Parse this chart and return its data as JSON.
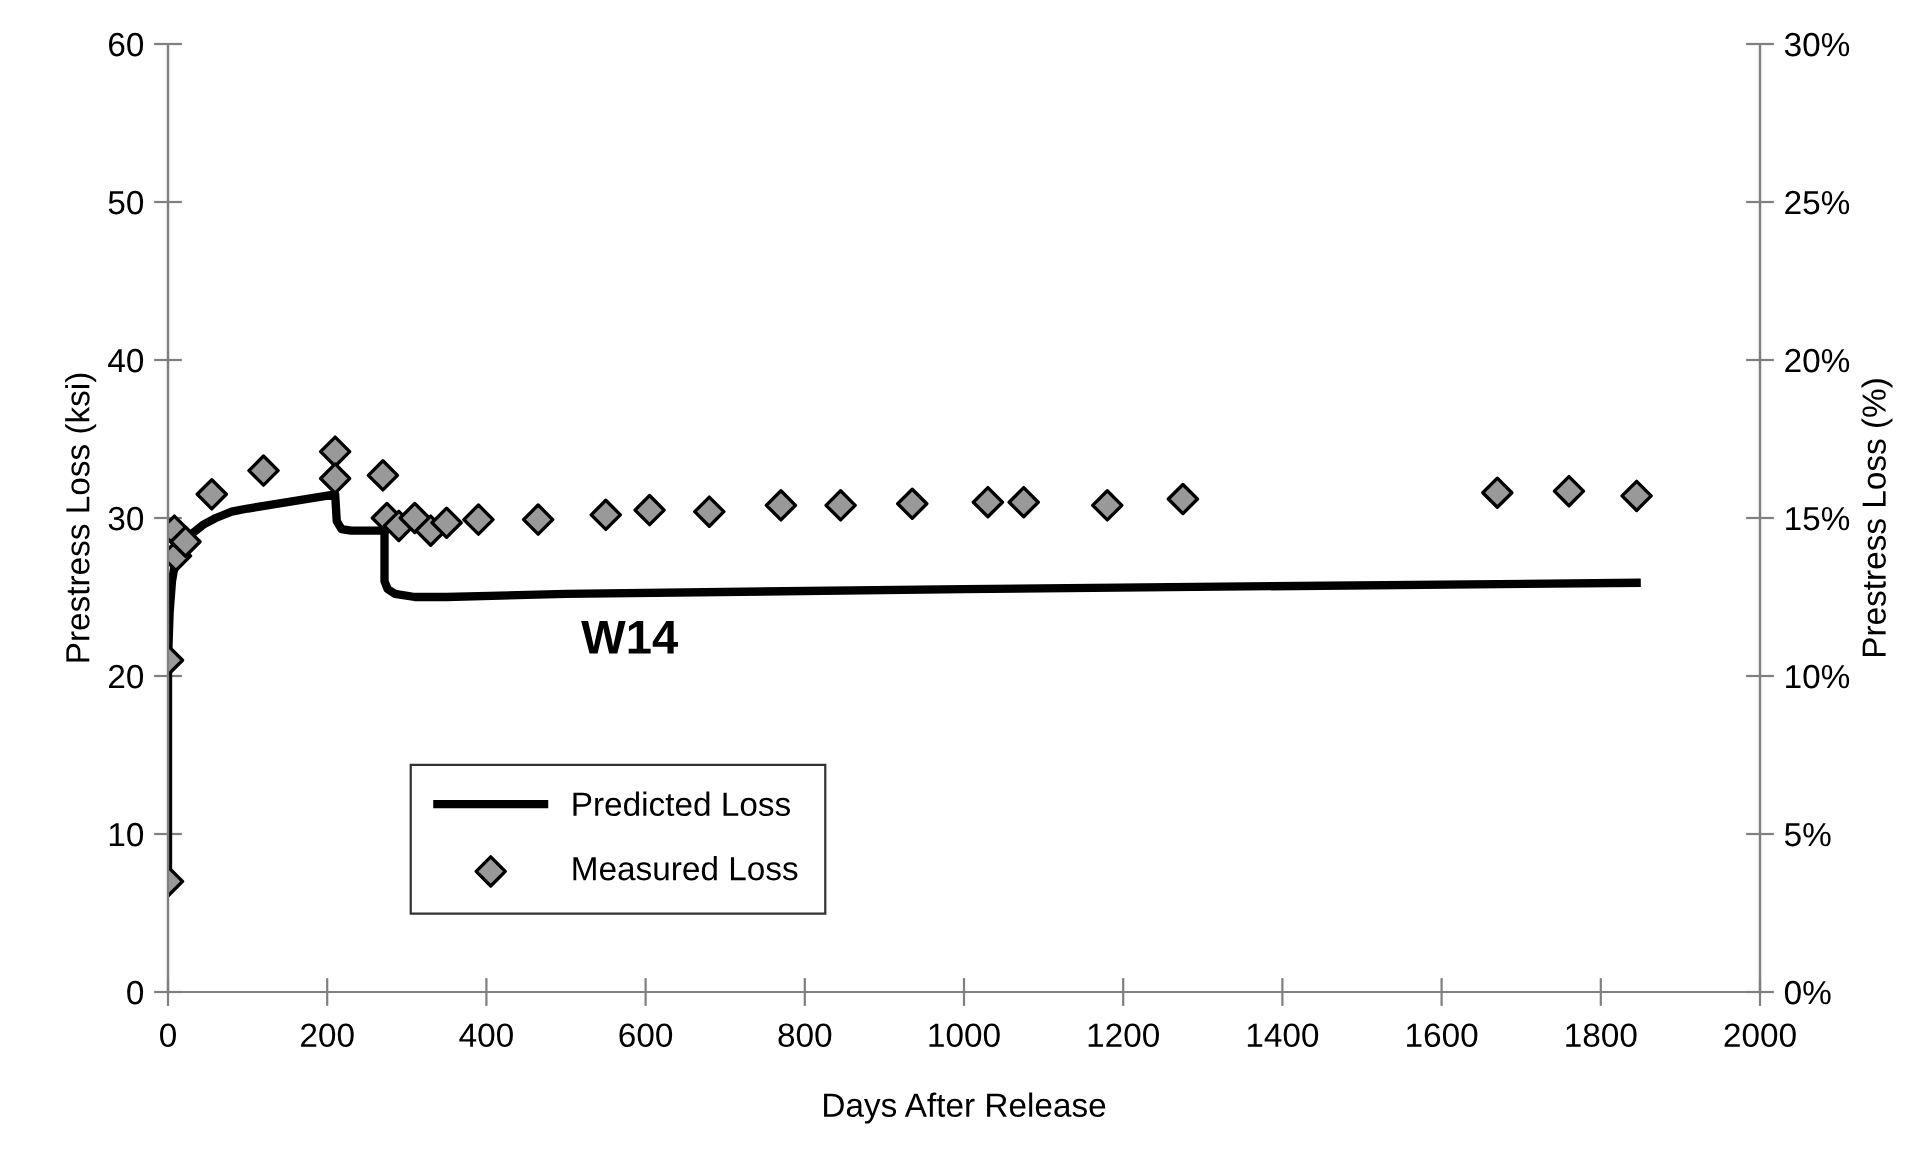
{
  "chart_data": {
    "type": "line",
    "xlabel": "Days After Release",
    "ylabel": "Prestress Loss (ksi)",
    "y2label": "Prestress Loss (%)",
    "annotations": [
      "W14"
    ],
    "xlim": [
      0,
      2000
    ],
    "xticks": [
      0,
      200,
      400,
      600,
      800,
      1000,
      1200,
      1400,
      1600,
      1800,
      2000
    ],
    "ylim": [
      0,
      60
    ],
    "yticks": [
      0,
      10,
      20,
      30,
      40,
      50,
      60
    ],
    "y2lim": [
      0,
      30
    ],
    "y2ticks": [
      {
        "value": 0,
        "label": "0%"
      },
      {
        "value": 5,
        "label": "5%"
      },
      {
        "value": 10,
        "label": "10%"
      },
      {
        "value": 15,
        "label": "15%"
      },
      {
        "value": 20,
        "label": "20%"
      },
      {
        "value": 25,
        "label": "25%"
      },
      {
        "value": 30,
        "label": "30%"
      }
    ],
    "grid": false,
    "legend": "bottom",
    "series": [
      {
        "name": "Predicted Loss",
        "color": "#000000",
        "marker": "none",
        "line_style": "solid",
        "x": [
          0,
          0,
          2,
          5,
          10,
          20,
          30,
          45,
          60,
          80,
          100,
          150,
          210,
          212,
          218,
          230,
          272,
          272,
          276,
          285,
          310,
          350,
          500,
          1000,
          1845
        ],
        "values": [
          6.5,
          21,
          24,
          26,
          27.5,
          28.5,
          29,
          29.6,
          30,
          30.4,
          30.6,
          31,
          31.5,
          29.8,
          29.3,
          29.2,
          29.2,
          26,
          25.5,
          25.2,
          25.0,
          25.0,
          25.2,
          25.5,
          25.9
        ]
      },
      {
        "name": "Measured Loss",
        "type": "scatter",
        "color": "#999999",
        "marker": "diamond",
        "x": [
          0,
          0,
          10,
          8,
          22,
          55,
          120,
          210,
          210,
          270,
          275,
          290,
          310,
          330,
          350,
          390,
          465,
          550,
          605,
          680,
          770,
          845,
          935,
          1030,
          1075,
          1180,
          1275,
          1670,
          1760,
          1845
        ],
        "values": [
          7,
          21,
          27.6,
          29.2,
          28.5,
          31.5,
          33,
          34.2,
          32.5,
          32.7,
          30,
          29.5,
          30,
          29.2,
          29.7,
          29.9,
          29.9,
          30.2,
          30.5,
          30.4,
          30.8,
          30.8,
          30.9,
          31,
          31,
          30.8,
          31.2,
          31.6,
          31.7,
          31.4
        ]
      }
    ]
  }
}
